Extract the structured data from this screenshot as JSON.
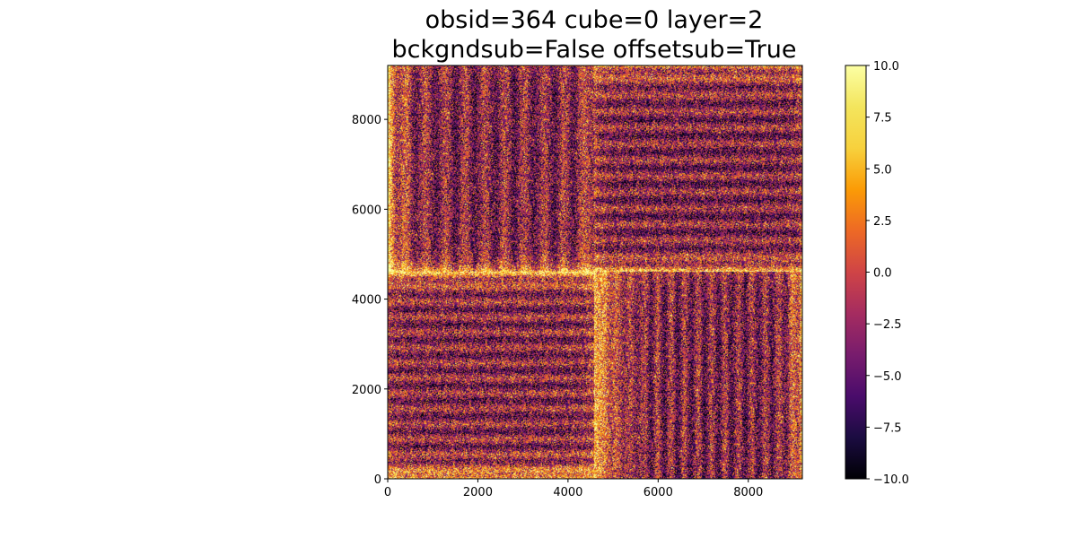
{
  "chart_data": {
    "type": "heatmap",
    "title": [
      "obsid=364 cube=0 layer=2",
      "bckgndsub=False  offsetsub=True"
    ],
    "xlabel": "",
    "ylabel": "",
    "xlim": [
      0,
      9200
    ],
    "ylim": [
      0,
      9200
    ],
    "x_ticks": [
      0,
      2000,
      4000,
      6000,
      8000
    ],
    "y_ticks": [
      0,
      2000,
      4000,
      6000,
      8000
    ],
    "colormap": "inferno",
    "colorbar": {
      "vmin": -10.0,
      "vmax": 10.0,
      "ticks": [
        -10.0,
        -7.5,
        -5.0,
        -2.5,
        0.0,
        2.5,
        5.0,
        7.5,
        10.0
      ],
      "tick_labels": [
        "−10.0",
        "−7.5",
        "−5.0",
        "−2.5",
        "0.0",
        "2.5",
        "5.0",
        "7.5",
        "10.0"
      ]
    },
    "quadrants": [
      {
        "name": "top-left",
        "x": [
          0,
          4600
        ],
        "y": [
          4600,
          9200
        ],
        "stripes": "vertical",
        "edge_glow": "left and bottom"
      },
      {
        "name": "top-right",
        "x": [
          4600,
          9200
        ],
        "y": [
          4600,
          9200
        ],
        "stripes": "horizontal",
        "edge_glow": "bottom"
      },
      {
        "name": "bottom-left",
        "x": [
          0,
          4600
        ],
        "y": [
          0,
          4600
        ],
        "stripes": "horizontal",
        "edge_glow": "top and bottom"
      },
      {
        "name": "bottom-right",
        "x": [
          4600,
          9200
        ],
        "y": [
          0,
          4600
        ],
        "stripes": "vertical",
        "edge_glow": "left and right"
      }
    ],
    "typical_value_range": [
      -6,
      10
    ]
  }
}
